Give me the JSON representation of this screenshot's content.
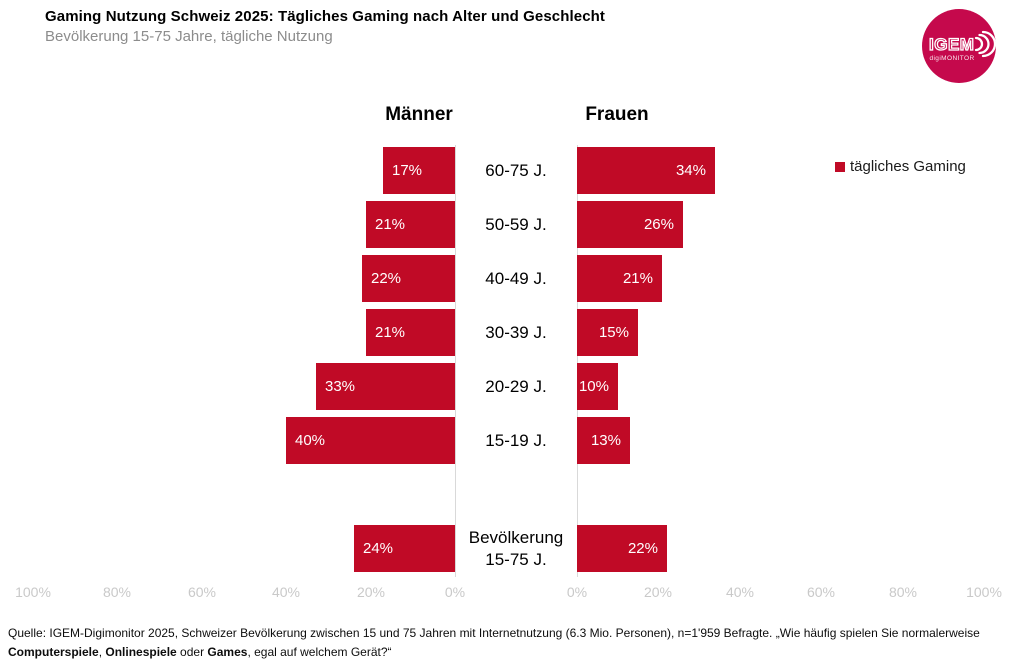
{
  "header": {
    "title": "Gaming Nutzung Schweiz 2025: Tägliches Gaming nach Alter und Geschlecht",
    "subtitle": "Bevölkerung 15-75 Jahre, tägliche Nutzung"
  },
  "logo": {
    "text": "IGEM",
    "subtext": "digiMONITOR"
  },
  "legend": {
    "label": "tägliches Gaming"
  },
  "colors": {
    "bar": "#c00a26",
    "logo_circle": "#c5094c",
    "axis_tick": "#c9c9c9",
    "subtitle_gray": "#8c8c8c"
  },
  "chart_data": {
    "type": "bar",
    "variant": "butterfly",
    "title": "Gaming Nutzung Schweiz 2025: Tägliches Gaming nach Alter und Geschlecht",
    "subtitle": "Bevölkerung 15-75 Jahre, tägliche Nutzung",
    "unit": "%",
    "categories": [
      "60-75 J.",
      "50-59 J.",
      "40-49 J.",
      "30-39 J.",
      "20-29 J.",
      "15-19 J.",
      "Bevölkerung\n15-75 J."
    ],
    "series": [
      {
        "name": "Männer",
        "side": "left",
        "values": [
          17,
          21,
          22,
          21,
          33,
          40,
          24
        ]
      },
      {
        "name": "Frauen",
        "side": "right",
        "values": [
          34,
          26,
          21,
          15,
          10,
          13,
          22
        ]
      }
    ],
    "legend_entries": [
      "tägliches Gaming"
    ],
    "legend_position": "right",
    "value_labels": "inside-end",
    "axes": {
      "left": {
        "ticks": [
          100,
          80,
          60,
          40,
          20,
          0
        ],
        "min": 0,
        "max": 100
      },
      "right": {
        "ticks": [
          0,
          20,
          40,
          60,
          80,
          100
        ],
        "min": 0,
        "max": 100
      }
    },
    "grid": "zero-baselines-only"
  },
  "footnote": {
    "segments": [
      {
        "text": "Quelle: IGEM-Digimonitor 2025, Schweizer Bevölkerung zwischen 15 und 75 Jahren mit Internetnutzung (6.3 Mio. Personen), n=1'959 Befragte. „Wie häufig spielen Sie normalerweise ",
        "bold": false
      },
      {
        "text": "Computerspiele",
        "bold": true
      },
      {
        "text": ", ",
        "bold": false
      },
      {
        "text": "Onlinespiele",
        "bold": true
      },
      {
        "text": " oder ",
        "bold": false
      },
      {
        "text": "Games",
        "bold": true
      },
      {
        "text": ", egal auf welchem Gerät?“",
        "bold": false
      }
    ]
  }
}
